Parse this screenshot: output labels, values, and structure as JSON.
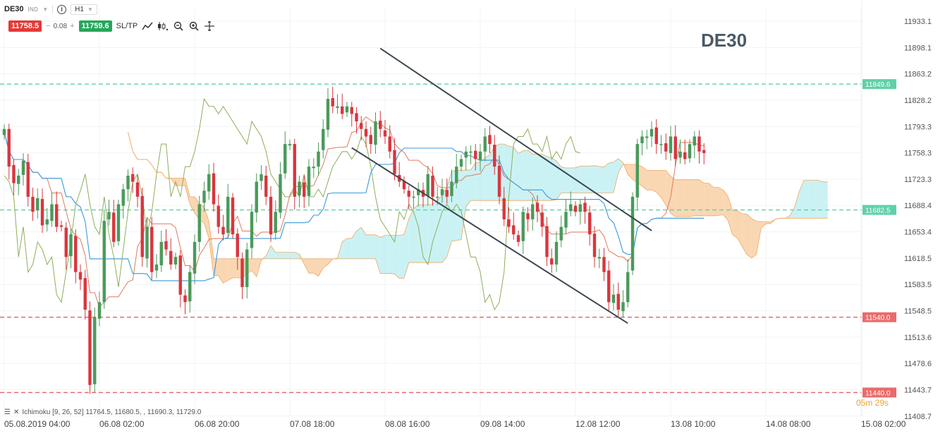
{
  "toolbar": {
    "symbol": "DE30",
    "tag": "IND",
    "timeframe": "H1",
    "sell_price": "11758.5",
    "spread_minus": "−",
    "spread": "0.08",
    "spread_plus": "+",
    "buy_price": "11759.6",
    "sltp_label": "SL/TP",
    "tools": [
      "trend-line-icon",
      "candles-icon",
      "zoom-out-icon",
      "zoom-in-icon",
      "crosshair-icon"
    ]
  },
  "watermark": "DE30",
  "indicator_legend": "Ichimoku [9, 26, 52] 11764.5, 11680.5, , 11690.3, 11729.0",
  "countdown": "05m 29s",
  "colors": {
    "up": "#4a9a5a",
    "down": "#d9363e",
    "tenkan": "#e07a5f",
    "kijun": "#3a9ad9",
    "chikou": "#8fae5a",
    "cloud_bear": "#f8c99a",
    "cloud_bull": "#b8eef0",
    "channel": "#3d4850",
    "resistance": "#5fd1a8",
    "support": "#ea6b6b"
  },
  "chart_data": {
    "type": "candlestick",
    "ylim": [
      11408.5,
      11950.0
    ],
    "y_ticks": [
      "11933.1",
      "11898.1",
      "11863.2",
      "11828.2",
      "11793.3",
      "11758.3",
      "11723.3",
      "11688.4",
      "11653.4",
      "11618.5",
      "11583.5",
      "11548.5",
      "11513.6",
      "11478.6",
      "11443.7",
      "11408.7"
    ],
    "x_ticks": [
      "05.08.2019 04:00",
      "06.08 02:00",
      "06.08 20:00",
      "07.08 18:00",
      "08.08 16:00",
      "09.08 14:00",
      "12.08 12:00",
      "13.08 10:00",
      "14.08 08:00",
      "15.08 02:00"
    ],
    "horizontal_levels": [
      {
        "label": "11849.6",
        "value": 11849.6,
        "kind": "resistance"
      },
      {
        "label": "11682.5",
        "value": 11682.5,
        "kind": "resistance"
      },
      {
        "label": "11540.0",
        "value": 11540.0,
        "kind": "support"
      },
      {
        "label": "11440.0",
        "value": 11440.0,
        "kind": "support"
      }
    ],
    "channel_lines": [
      {
        "from": [
          79,
          11897
        ],
        "to": [
          136,
          11655
        ]
      },
      {
        "from": [
          73,
          11765
        ],
        "to": [
          131,
          11532
        ]
      }
    ],
    "bars_visible": 148,
    "closes": [
      11790,
      11740,
      11718,
      11728,
      11748,
      11700,
      11680,
      11698,
      11662,
      11670,
      11690,
      11660,
      11660,
      11620,
      11650,
      11600,
      11590,
      11550,
      11450,
      11540,
      11560,
      11668,
      11680,
      11640,
      11690,
      11710,
      11728,
      11720,
      11700,
      11620,
      11660,
      11600,
      11610,
      11640,
      11630,
      11610,
      11620,
      11570,
      11560,
      11600,
      11640,
      11690,
      11708,
      11730,
      11690,
      11660,
      11650,
      11700,
      11650,
      11620,
      11580,
      11630,
      11680,
      11720,
      11730,
      11700,
      11650,
      11680,
      11730,
      11770,
      11770,
      11700,
      11720,
      11700,
      11740,
      11740,
      11760,
      11790,
      11830,
      11820,
      11820,
      11810,
      11820,
      11810,
      11800,
      11790,
      11780,
      11770,
      11800,
      11790,
      11780,
      11760,
      11730,
      11720,
      11710,
      11700,
      11700,
      11710,
      11700,
      11730,
      11700,
      11700,
      11710,
      11700,
      11720,
      11740,
      11750,
      11760,
      11760,
      11750,
      11760,
      11780,
      11770,
      11740,
      11700,
      11670,
      11660,
      11650,
      11640,
      11680,
      11670,
      11690,
      11680,
      11660,
      11620,
      11610,
      11640,
      11660,
      11680,
      11690,
      11680,
      11690,
      11680,
      11650,
      11620,
      11620,
      11600,
      11560,
      11570,
      11550,
      11560,
      11600,
      11700,
      11770,
      11780,
      11780,
      11790,
      11770,
      11770,
      11760,
      11780,
      11750,
      11760,
      11750,
      11770,
      11780,
      11760,
      11758
    ]
  }
}
